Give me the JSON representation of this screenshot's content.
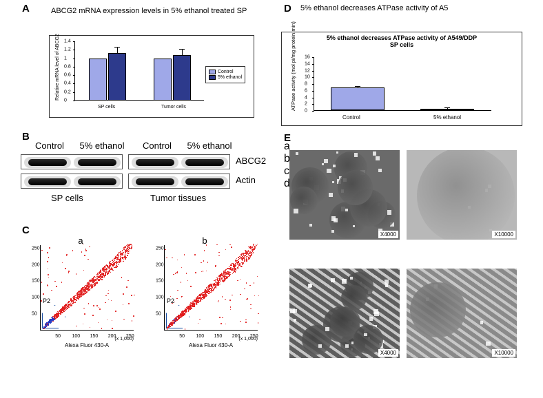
{
  "panelA": {
    "label": "A",
    "title": "ABCG2 mRNA expression levels in 5% ethanol treated SP",
    "ylabel": "Relative mRNA level of ABCG2",
    "yticks": [
      0,
      0.2,
      0.4,
      0.6,
      0.8,
      1,
      1.2,
      1.4
    ],
    "ymax": 1.4,
    "groups": [
      "SP cells",
      "Tumor cells"
    ],
    "series": [
      {
        "name": "Control",
        "color": "#9fa8e8",
        "values": [
          1.0,
          1.0
        ],
        "err": [
          0,
          0
        ]
      },
      {
        "name": "5% ethanol",
        "color": "#2d3a8c",
        "values": [
          1.12,
          1.08
        ],
        "err": [
          0.1,
          0.08
        ]
      }
    ],
    "legend_colors": [
      "#9fa8e8",
      "#2d3a8c"
    ]
  },
  "panelB": {
    "label": "B",
    "cols": [
      "Control",
      "5% ethanol",
      "Control",
      "5% ethanol"
    ],
    "rows": [
      "ABCG2",
      "Actin"
    ],
    "bottom": [
      "SP cells",
      "Tumor tissues"
    ]
  },
  "panelC": {
    "label": "C",
    "sub": [
      "a",
      "b"
    ],
    "yticks": [
      50,
      100,
      150,
      200,
      250
    ],
    "xticks": [
      50,
      100,
      150,
      200,
      250
    ],
    "xlab": "Alexa Fluor 430-A",
    "xlab2": "(x 1,000)",
    "p2": "P2",
    "gate_blue_fraction": {
      "a": 0.12,
      "b": 0.02
    },
    "red": "#e11b1b",
    "blue": "#2236c2"
  },
  "panelD": {
    "label": "D",
    "title_outer": "5% ethanol decreases ATPase activity of A5",
    "title_inner1": "5% ethanol decreases ATPase activity of A549/DDP",
    "title_inner2": "SP cells",
    "ylabel": "ATPase activity (mol pi/mg protein.min)",
    "yticks": [
      0,
      2,
      4,
      6,
      8,
      10,
      12,
      14,
      16
    ],
    "ymax": 16,
    "groups": [
      "Control",
      "5% ethanol"
    ],
    "values": [
      6.8,
      0.2
    ],
    "err": [
      0.15,
      0.02
    ],
    "bar_color": "#9fa8e8"
  },
  "panelE": {
    "label": "E",
    "images": [
      {
        "sub": "a",
        "mag": "X4000",
        "bg": "#6a6a6a"
      },
      {
        "sub": "b",
        "mag": "X10000",
        "bg": "#b8b8b8"
      },
      {
        "sub": "c",
        "mag": "X4000",
        "bg": "#5e5e5e"
      },
      {
        "sub": "d",
        "mag": "X10000",
        "bg": "#8a8a8a"
      }
    ]
  }
}
